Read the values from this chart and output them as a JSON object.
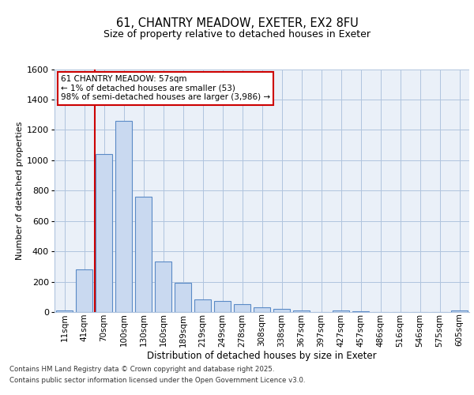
{
  "title_line1": "61, CHANTRY MEADOW, EXETER, EX2 8FU",
  "title_line2": "Size of property relative to detached houses in Exeter",
  "xlabel": "Distribution of detached houses by size in Exeter",
  "ylabel": "Number of detached properties",
  "bar_labels": [
    "11sqm",
    "41sqm",
    "70sqm",
    "100sqm",
    "130sqm",
    "160sqm",
    "189sqm",
    "219sqm",
    "249sqm",
    "278sqm",
    "308sqm",
    "338sqm",
    "367sqm",
    "397sqm",
    "427sqm",
    "457sqm",
    "486sqm",
    "516sqm",
    "546sqm",
    "575sqm",
    "605sqm"
  ],
  "bar_values": [
    10,
    280,
    1040,
    1260,
    760,
    335,
    190,
    85,
    75,
    50,
    32,
    20,
    13,
    0,
    10,
    3,
    2,
    2,
    2,
    0,
    12
  ],
  "bar_color": "#c9d9f0",
  "bar_edge_color": "#5a8ac6",
  "red_line_x": 1.55,
  "annotation_title": "61 CHANTRY MEADOW: 57sqm",
  "annotation_line1": "← 1% of detached houses are smaller (53)",
  "annotation_line2": "98% of semi-detached houses are larger (3,986) →",
  "annotation_box_color": "#ffffff",
  "annotation_border_color": "#cc0000",
  "grid_color": "#b0c4de",
  "background_color": "#eaf0f8",
  "ylim": [
    0,
    1600
  ],
  "yticks": [
    0,
    200,
    400,
    600,
    800,
    1000,
    1200,
    1400,
    1600
  ],
  "footer_line1": "Contains HM Land Registry data © Crown copyright and database right 2025.",
  "footer_line2": "Contains public sector information licensed under the Open Government Licence v3.0."
}
